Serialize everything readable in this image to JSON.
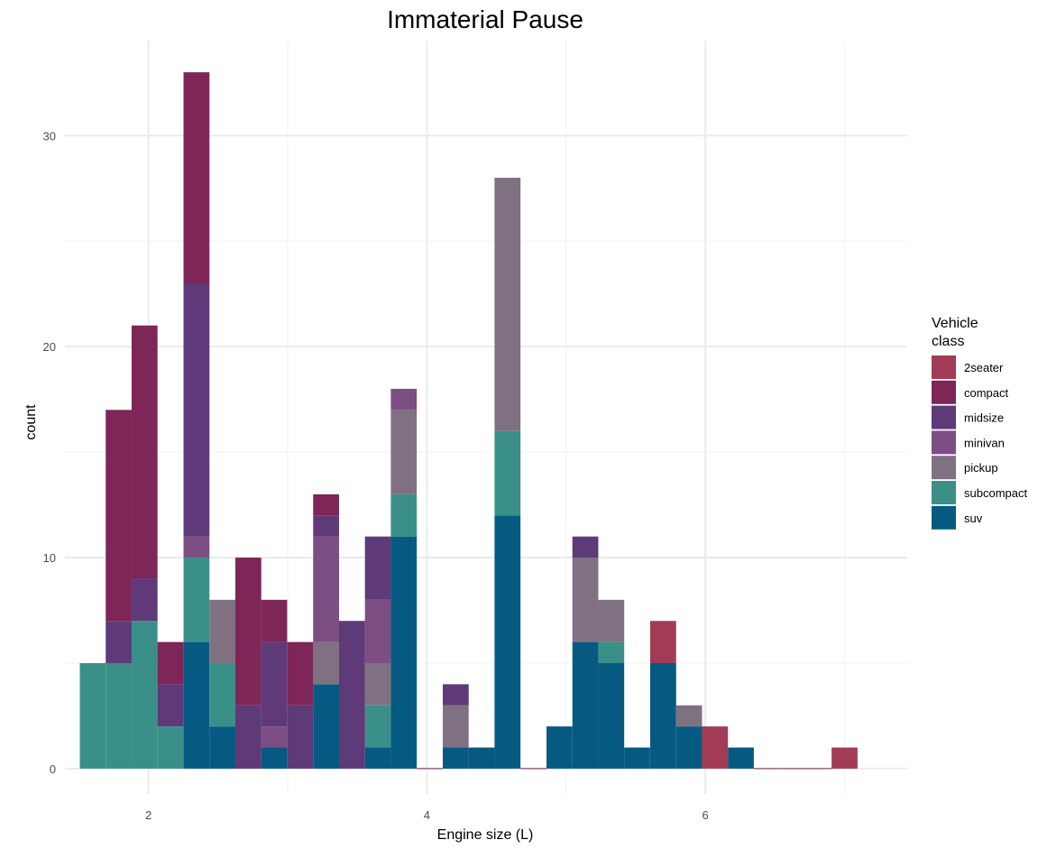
{
  "chart_data": {
    "type": "bar",
    "stacked": true,
    "title": "Immaterial Pause",
    "xlabel": "Engine size (L)",
    "ylabel": "count",
    "xlim": [
      1.4,
      7.45
    ],
    "ylim": [
      -1.2,
      34.5
    ],
    "x_ticks": [
      2,
      4,
      6
    ],
    "y_ticks": [
      0,
      10,
      20,
      30
    ],
    "bin_width": 0.1862,
    "bin_centers": [
      1.6,
      1.786,
      1.972,
      2.158,
      2.345,
      2.531,
      2.717,
      2.903,
      3.09,
      3.276,
      3.462,
      3.648,
      3.834,
      4.021,
      4.207,
      4.393,
      4.579,
      4.766,
      4.952,
      5.138,
      5.324,
      5.51,
      5.697,
      5.883,
      6.069,
      6.255,
      6.442,
      6.628,
      6.814,
      7.0
    ],
    "grid": true,
    "legend_position": "right",
    "legend": {
      "title_lines": [
        "Vehicle",
        "class"
      ],
      "entries": [
        "2seater",
        "compact",
        "midsize",
        "minivan",
        "pickup",
        "subcompact",
        "suv"
      ]
    },
    "colors": {
      "2seater": "#A23B56",
      "compact": "#7D2657",
      "midsize": "#5E3A78",
      "minivan": "#7D4E83",
      "pickup": "#7F7182",
      "subcompact": "#3A9088",
      "suv": "#065A82"
    },
    "series": [
      {
        "name": "suv",
        "values": [
          0,
          0,
          0,
          0,
          6,
          2,
          0,
          1,
          0,
          4,
          0,
          1,
          11,
          0,
          1,
          1,
          12,
          0,
          2,
          6,
          5,
          1,
          5,
          2,
          0,
          1,
          0,
          0,
          0,
          0
        ]
      },
      {
        "name": "subcompact",
        "values": [
          5,
          5,
          7,
          2,
          4,
          3,
          0,
          0,
          0,
          0,
          0,
          2,
          2,
          0,
          0,
          0,
          4,
          0,
          0,
          0,
          1,
          0,
          0,
          0,
          0,
          0,
          0,
          0,
          0,
          0
        ]
      },
      {
        "name": "pickup",
        "values": [
          0,
          0,
          0,
          0,
          0,
          3,
          0,
          0,
          0,
          2,
          0,
          2,
          4,
          0,
          2,
          0,
          12,
          0,
          0,
          4,
          2,
          0,
          0,
          1,
          0,
          0,
          0,
          0,
          0,
          0
        ]
      },
      {
        "name": "minivan",
        "values": [
          0,
          0,
          0,
          0,
          1,
          0,
          0,
          1,
          0,
          5,
          0,
          3,
          1,
          0,
          0,
          0,
          0,
          0,
          0,
          0,
          0,
          0,
          0,
          0,
          0,
          0,
          0,
          0,
          0,
          0
        ]
      },
      {
        "name": "midsize",
        "values": [
          0,
          2,
          2,
          2,
          12,
          0,
          3,
          4,
          3,
          1,
          7,
          3,
          0,
          0,
          1,
          0,
          0,
          0,
          0,
          1,
          0,
          0,
          0,
          0,
          0,
          0,
          0,
          0,
          0,
          0
        ]
      },
      {
        "name": "compact",
        "values": [
          0,
          10,
          12,
          2,
          10,
          0,
          7,
          2,
          3,
          1,
          0,
          0,
          0,
          0,
          0,
          0,
          0,
          0,
          0,
          0,
          0,
          0,
          0,
          0,
          0,
          0,
          0,
          0,
          0,
          0
        ]
      },
      {
        "name": "2seater",
        "values": [
          0,
          0,
          0,
          0,
          0,
          0,
          0,
          0,
          0,
          0,
          0,
          0,
          0,
          0,
          0,
          0,
          0,
          0,
          0,
          0,
          0,
          0,
          2,
          0,
          2,
          0,
          0,
          0,
          0,
          1
        ]
      }
    ]
  }
}
